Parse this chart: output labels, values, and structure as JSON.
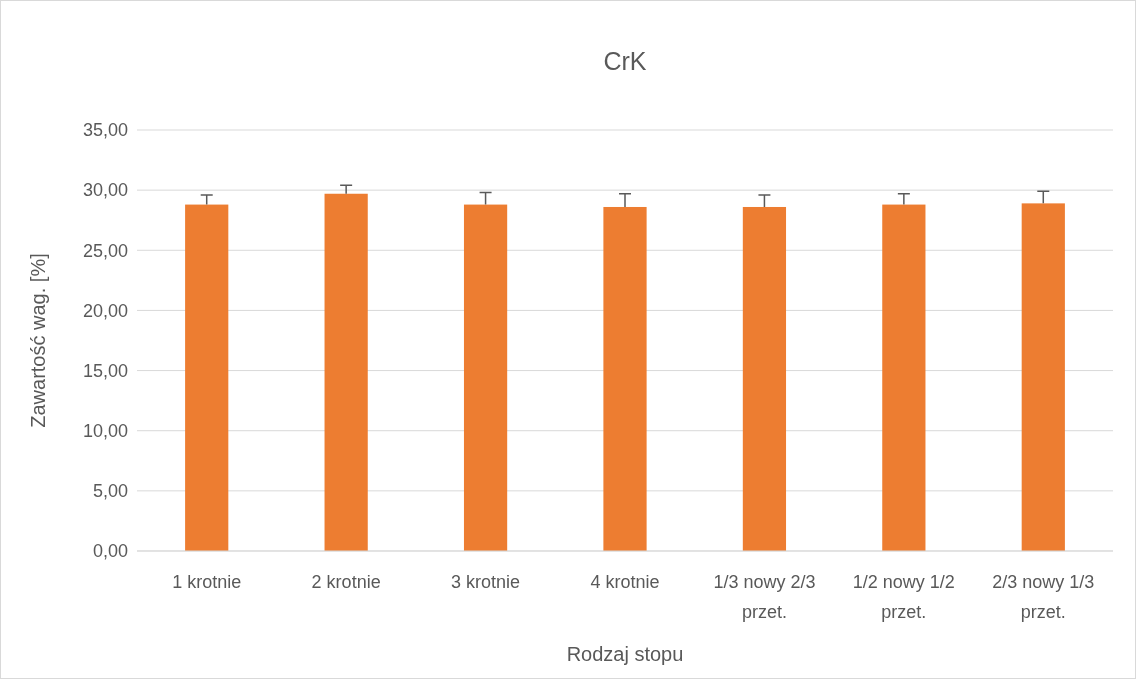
{
  "chart_data": {
    "type": "bar",
    "title": "CrK",
    "xlabel": "Rodzaj stopu",
    "ylabel": "Zawartość wag. [%]",
    "categories": [
      "1 krotnie",
      "2 krotnie",
      "3 krotnie",
      "4 krotnie",
      "1/3 nowy 2/3 przet.",
      "1/2 nowy 1/2 przet.",
      "2/3 nowy 1/3 przet."
    ],
    "values": [
      28.8,
      29.7,
      28.8,
      28.6,
      28.6,
      28.8,
      28.9
    ],
    "errors": [
      [
        28.8,
        29.6
      ],
      [
        29.7,
        30.4
      ],
      [
        28.8,
        29.8
      ],
      [
        28.6,
        29.7
      ],
      [
        28.6,
        29.6
      ],
      [
        28.8,
        29.7
      ],
      [
        28.9,
        29.9
      ]
    ],
    "color": "#ed7d31",
    "ylim": [
      0,
      35
    ],
    "yticks": [
      {
        "value": 0,
        "label": "0,00"
      },
      {
        "value": 5,
        "label": "5,00"
      },
      {
        "value": 10,
        "label": "10,00"
      },
      {
        "value": 15,
        "label": "15,00"
      },
      {
        "value": 20,
        "label": "20,00"
      },
      {
        "value": 25,
        "label": "25,00"
      },
      {
        "value": 30,
        "label": "30,00"
      },
      {
        "value": 35,
        "label": "35,00"
      }
    ],
    "grid": "y"
  }
}
